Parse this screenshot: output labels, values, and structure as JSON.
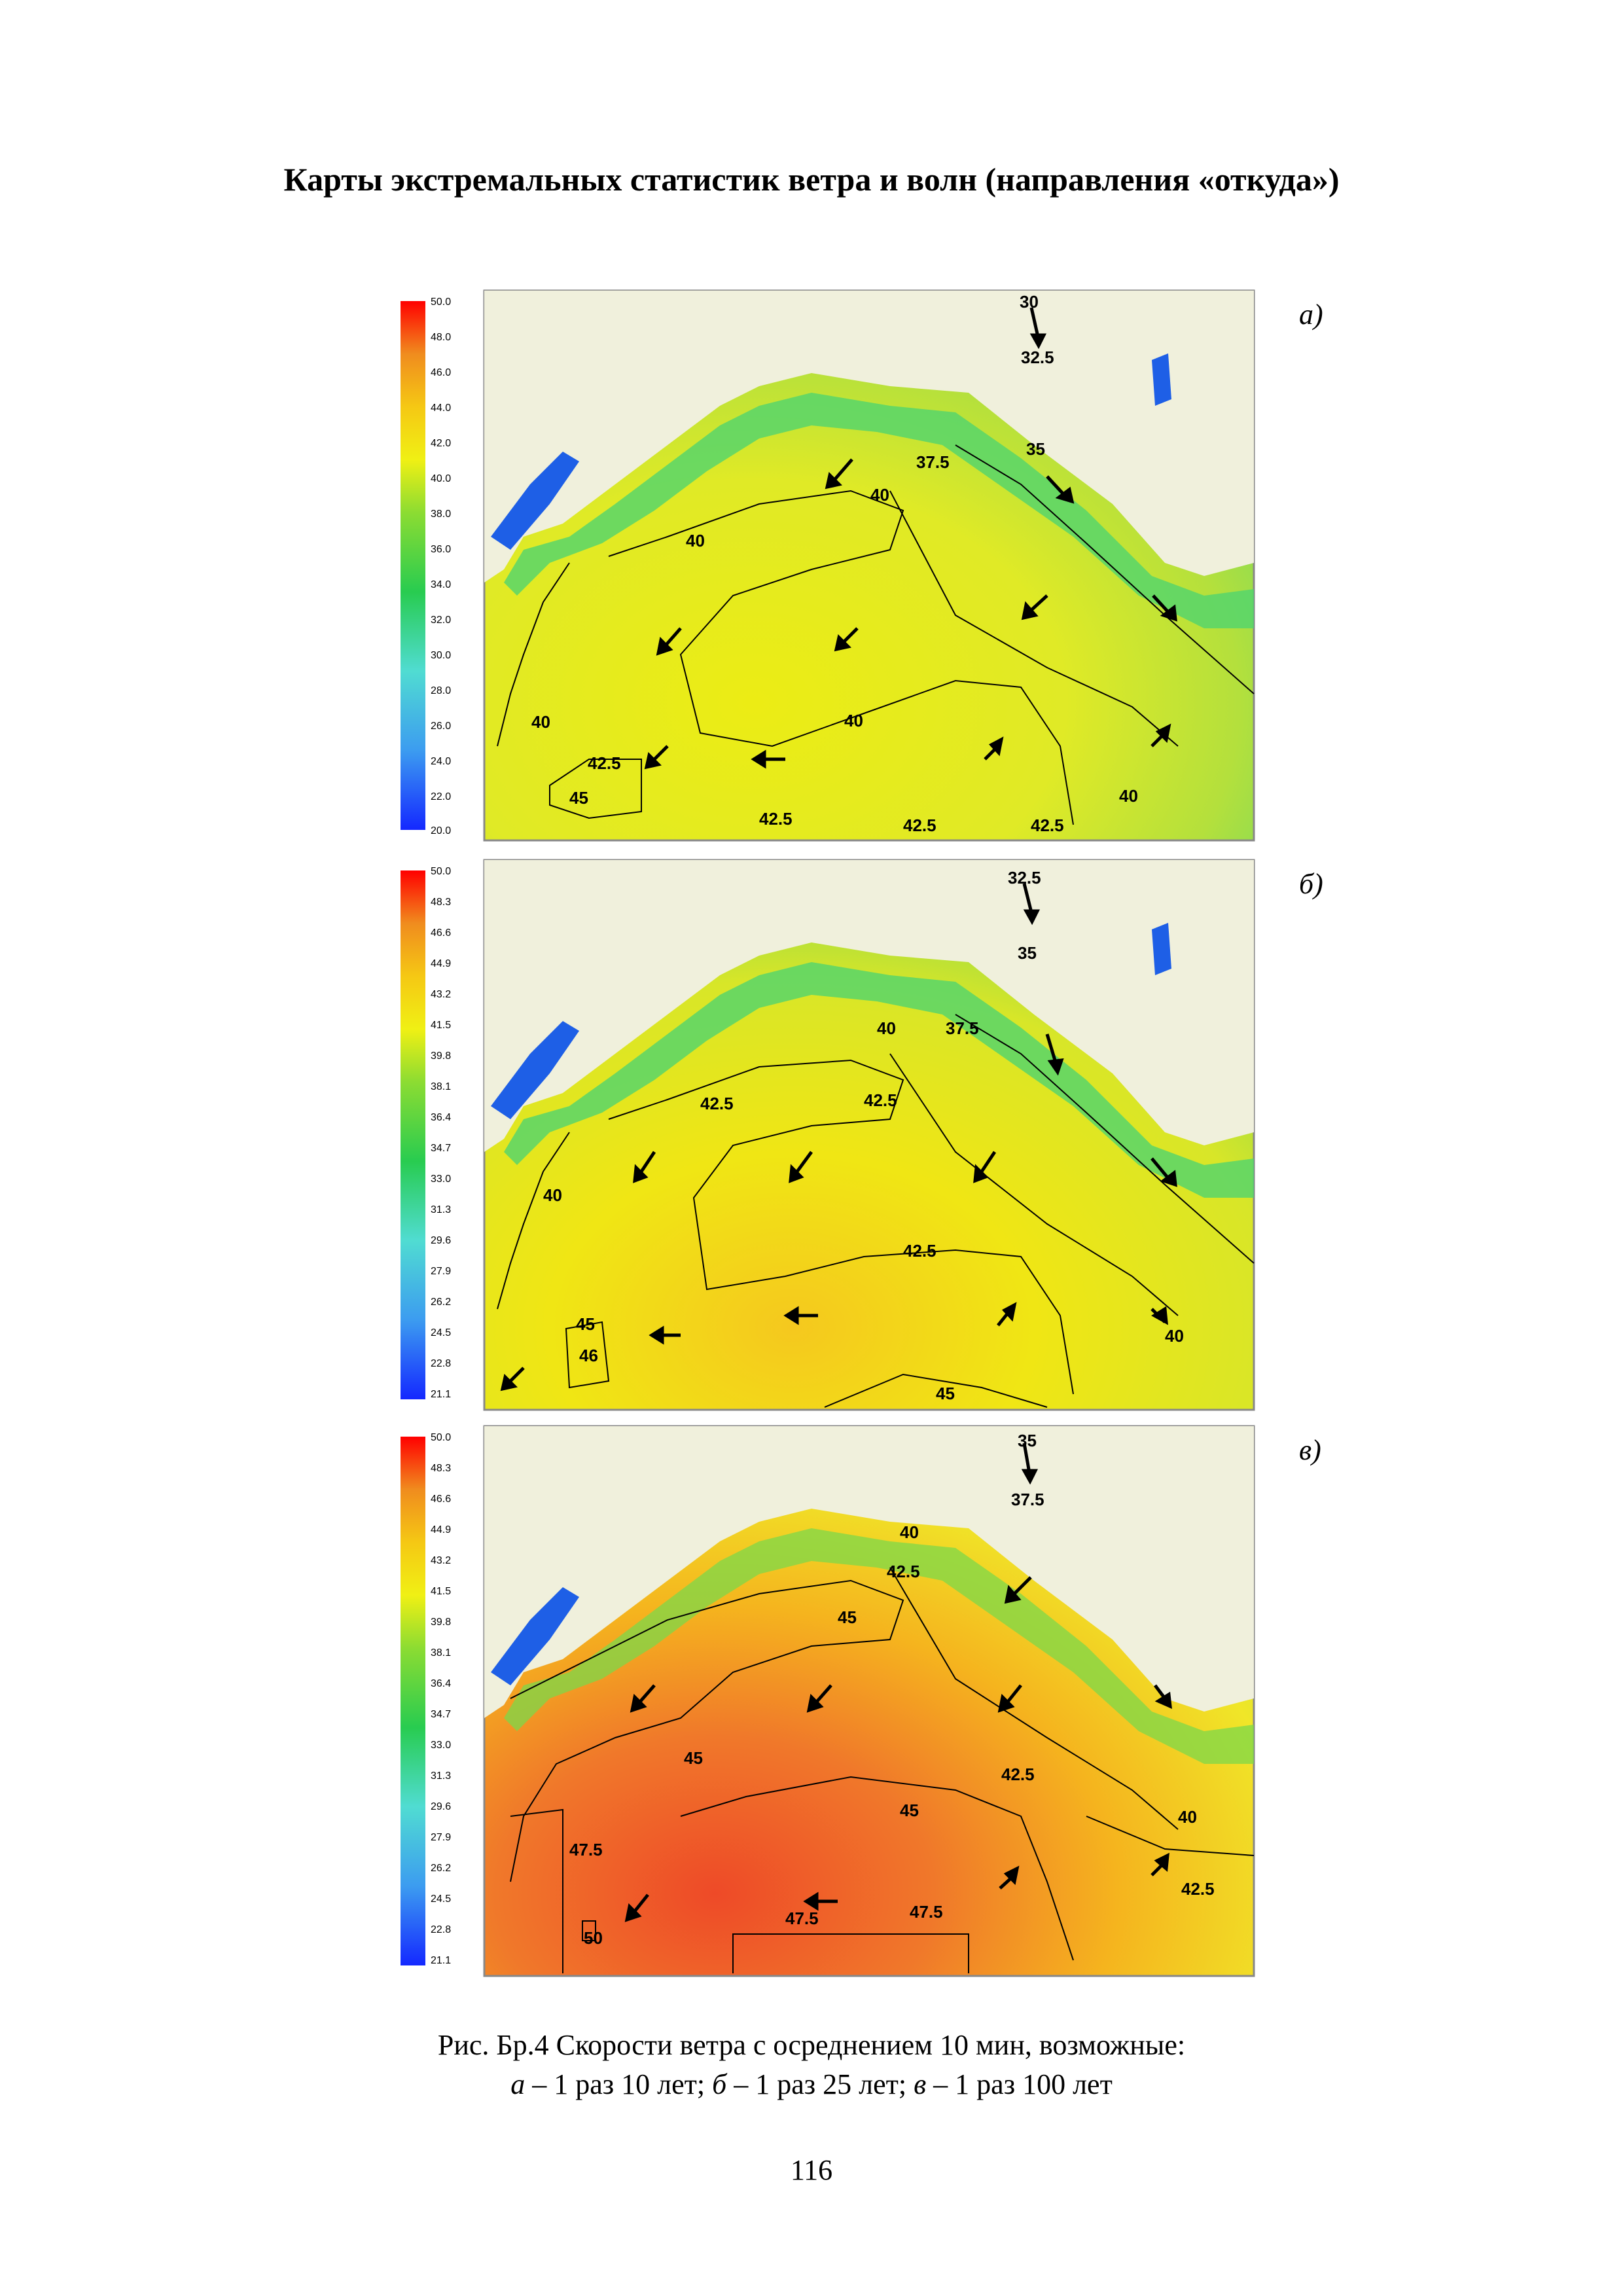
{
  "title": "Карты экстремальных статистик ветра и волн (направления «откуда»)",
  "colors": {
    "land": "#f0f0dc",
    "lake": "#1e5fe6",
    "scale_stops": [
      "#1428ff",
      "#3c78f0",
      "#64d2f0",
      "#3cd296",
      "#28cc50",
      "#6cd23c",
      "#c8e61e",
      "#f0f014",
      "#f5c814",
      "#f08c1e",
      "#e63c1e",
      "#ff0000"
    ]
  },
  "panels": [
    {
      "label": "а)",
      "scale_ticks": [
        "50.0",
        "48.0",
        "46.0",
        "44.0",
        "42.0",
        "40.0",
        "38.0",
        "36.0",
        "34.0",
        "32.0",
        "30.0",
        "28.0",
        "26.0",
        "24.0",
        "22.0",
        "20.0"
      ],
      "contour_labels": [
        "30",
        "32.5",
        "35",
        "37.5",
        "40",
        "40",
        "40",
        "40",
        "40",
        "42.5",
        "45",
        "42.5",
        "42.5",
        "42.5"
      ],
      "sea_gradient": [
        "#cde63c",
        "#e8ea28",
        "#ecec14"
      ]
    },
    {
      "label": "б)",
      "scale_ticks": [
        "50.0",
        "48.3",
        "46.6",
        "44.9",
        "43.2",
        "41.5",
        "39.8",
        "38.1",
        "36.4",
        "34.7",
        "33.0",
        "31.3",
        "29.6",
        "27.9",
        "26.2",
        "24.5",
        "22.8",
        "21.1"
      ],
      "contour_labels": [
        "32.5",
        "35",
        "40",
        "37.5",
        "42.5",
        "42.5",
        "40",
        "42.5",
        "45",
        "46",
        "45",
        "40"
      ],
      "sea_gradient": [
        "#e0ec28",
        "#f0ec14",
        "#f5d21e"
      ]
    },
    {
      "label": "в)",
      "scale_ticks": [
        "50.0",
        "48.3",
        "46.6",
        "44.9",
        "43.2",
        "41.5",
        "39.8",
        "38.1",
        "36.4",
        "34.7",
        "33.0",
        "31.3",
        "29.6",
        "27.9",
        "26.2",
        "24.5",
        "22.8",
        "21.1"
      ],
      "contour_labels": [
        "35",
        "37.5",
        "40",
        "42.5",
        "45",
        "45",
        "42.5",
        "45",
        "40",
        "47.5",
        "50",
        "47.5",
        "47.5",
        "42.5"
      ],
      "sea_gradient": [
        "#f0e628",
        "#f5b41e",
        "#ee6428"
      ]
    }
  ],
  "caption": {
    "line1": "Рис. Бр.4 Скорости ветра с осреднением 10 мин, возможные:",
    "a": "а",
    "a_text": " – 1 раз 10 лет; ",
    "b": "б",
    "b_text": " – 1 раз 25 лет; ",
    "c": "в",
    "c_text": " – 1 раз 100 лет"
  },
  "page_number": "116"
}
